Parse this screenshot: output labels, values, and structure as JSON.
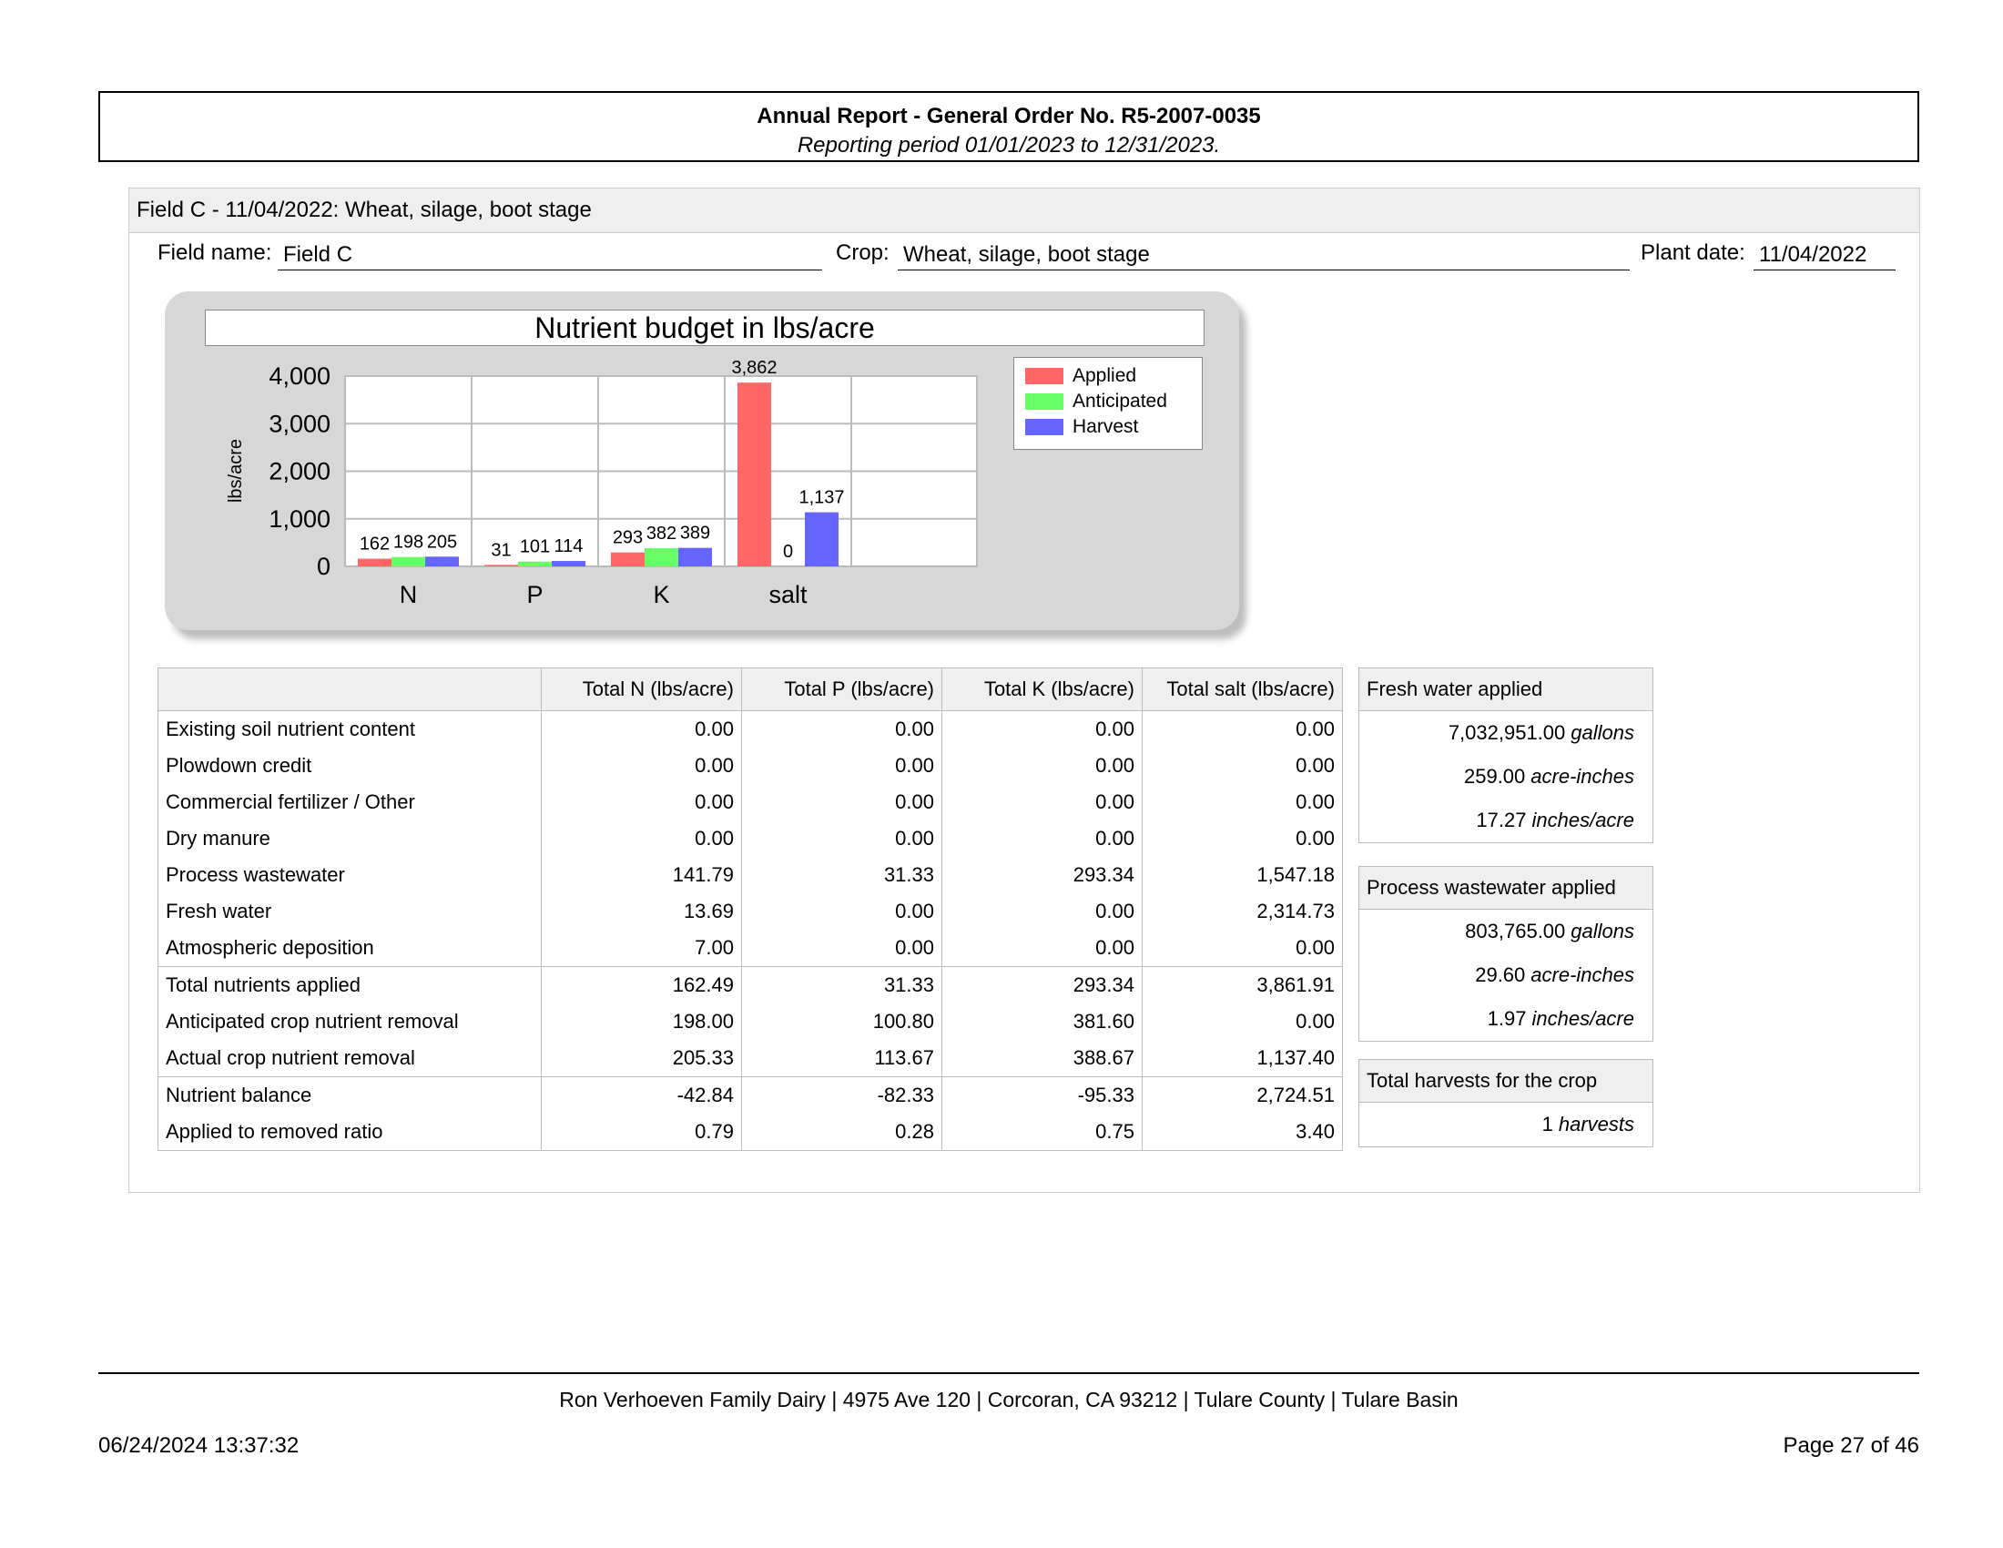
{
  "header": {
    "title": "Annual Report - General Order No. R5-2007-0035",
    "period": "Reporting period 01/01/2023 to 12/31/2023."
  },
  "section": {
    "heading": "Field C - 11/04/2022: Wheat, silage, boot stage",
    "field_name_label": "Field name:",
    "field_name": "Field C",
    "crop_label": "Crop:",
    "crop": "Wheat, silage, boot stage",
    "plant_date_label": "Plant date:",
    "plant_date": "11/04/2022"
  },
  "chart_data": {
    "type": "bar",
    "title": "Nutrient budget in lbs/acre",
    "ylabel": "lbs/acre",
    "xlabel": "",
    "ylim": [
      0,
      4000
    ],
    "yticks": [
      "0",
      "1,000",
      "2,000",
      "3,000",
      "4,000"
    ],
    "categories": [
      "N",
      "P",
      "K",
      "salt"
    ],
    "series": [
      {
        "name": "Applied",
        "color": "#ff6666",
        "values": [
          162,
          31,
          293,
          3862
        ],
        "labels": [
          "162",
          "31",
          "293",
          "3,862"
        ]
      },
      {
        "name": "Anticipated",
        "color": "#66ff66",
        "values": [
          198,
          101,
          382,
          0
        ],
        "labels": [
          "198",
          "101",
          "382",
          "0"
        ]
      },
      {
        "name": "Harvest",
        "color": "#6666ff",
        "values": [
          205,
          114,
          389,
          1137
        ],
        "labels": [
          "205",
          "114",
          "389",
          "1,137"
        ]
      }
    ],
    "grid": true,
    "legend": "top-right"
  },
  "table": {
    "headers": [
      "",
      "Total N (lbs/acre)",
      "Total P (lbs/acre)",
      "Total K (lbs/acre)",
      "Total salt (lbs/acre)"
    ],
    "groups": [
      [
        [
          "Existing soil nutrient content",
          "0.00",
          "0.00",
          "0.00",
          "0.00"
        ],
        [
          "Plowdown credit",
          "0.00",
          "0.00",
          "0.00",
          "0.00"
        ],
        [
          "Commercial fertilizer / Other",
          "0.00",
          "0.00",
          "0.00",
          "0.00"
        ],
        [
          "Dry manure",
          "0.00",
          "0.00",
          "0.00",
          "0.00"
        ],
        [
          "Process wastewater",
          "141.79",
          "31.33",
          "293.34",
          "1,547.18"
        ],
        [
          "Fresh water",
          "13.69",
          "0.00",
          "0.00",
          "2,314.73"
        ],
        [
          "Atmospheric deposition",
          "7.00",
          "0.00",
          "0.00",
          "0.00"
        ]
      ],
      [
        [
          "Total nutrients applied",
          "162.49",
          "31.33",
          "293.34",
          "3,861.91"
        ],
        [
          "Anticipated crop nutrient removal",
          "198.00",
          "100.80",
          "381.60",
          "0.00"
        ],
        [
          "Actual crop nutrient removal",
          "205.33",
          "113.67",
          "388.67",
          "1,137.40"
        ]
      ],
      [
        [
          "Nutrient balance",
          "-42.84",
          "-82.33",
          "-95.33",
          "2,724.51"
        ],
        [
          "Applied to removed ratio",
          "0.79",
          "0.28",
          "0.75",
          "3.40"
        ]
      ]
    ]
  },
  "side": {
    "fresh_water": {
      "title": "Fresh water applied",
      "rows": [
        {
          "value": "7,032,951.00",
          "unit": "gallons"
        },
        {
          "value": "259.00",
          "unit": "acre-inches"
        },
        {
          "value": "17.27",
          "unit": "inches/acre"
        }
      ]
    },
    "process_wastewater": {
      "title": "Process wastewater applied",
      "rows": [
        {
          "value": "803,765.00",
          "unit": "gallons"
        },
        {
          "value": "29.60",
          "unit": "acre-inches"
        },
        {
          "value": "1.97",
          "unit": "inches/acre"
        }
      ]
    },
    "harvests": {
      "title": "Total harvests for the crop",
      "rows": [
        {
          "value": "1",
          "unit": "harvests"
        }
      ]
    }
  },
  "footer": {
    "address": "Ron Verhoeven Family Dairy | 4975 Ave 120 | Corcoran, CA 93212 | Tulare County | Tulare Basin",
    "timestamp": "06/24/2024 13:37:32",
    "page": "Page 27 of 46"
  }
}
